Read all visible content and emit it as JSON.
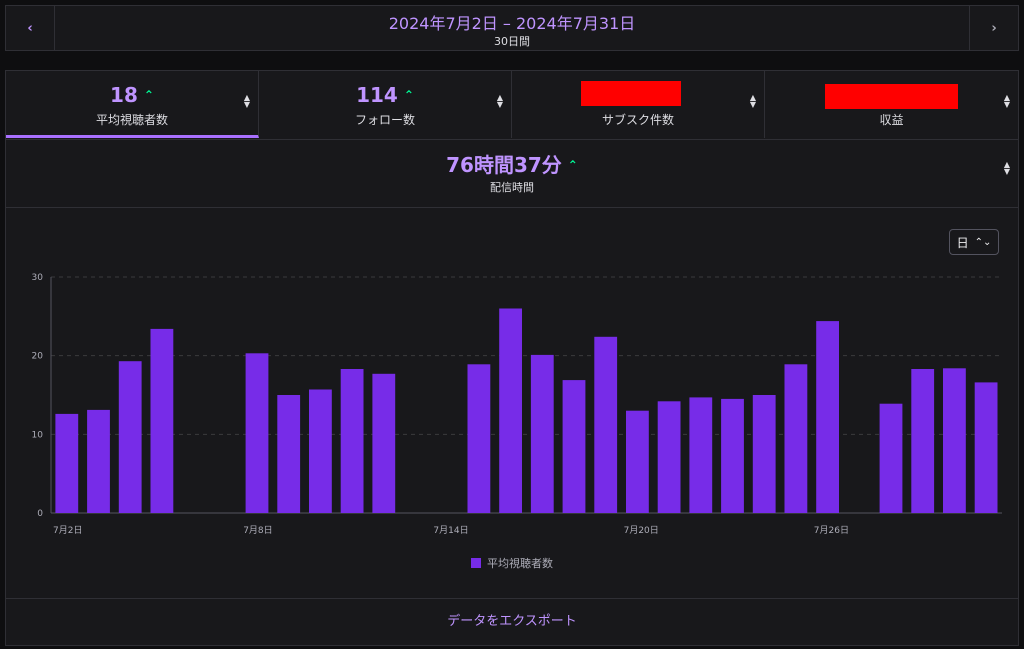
{
  "header": {
    "prev_icon": "chevron-left-icon",
    "next_icon": "chevron-right-icon",
    "date_range": "2024年7月2日 – 2024年7月31日",
    "duration": "30日間"
  },
  "metrics": {
    "tabs": [
      {
        "value": "18",
        "label": "平均視聴者数",
        "trend": "up"
      },
      {
        "value": "114",
        "label": "フォロー数",
        "trend": "up"
      },
      {
        "value": "",
        "label": "サブスク件数",
        "redacted": true
      },
      {
        "value": "",
        "label": "収益",
        "redacted": true
      }
    ],
    "hours": {
      "value": "76時間37分",
      "label": "配信時間",
      "trend": "up"
    }
  },
  "interval": {
    "label": "日"
  },
  "chart_data": {
    "type": "bar",
    "series": [
      {
        "name": "平均視聴者数",
        "color": "#772ce8",
        "values": [
          12.6,
          13.1,
          19.3,
          23.4,
          null,
          null,
          20.3,
          15.0,
          15.7,
          18.3,
          17.7,
          null,
          null,
          18.9,
          26.0,
          20.1,
          16.9,
          22.4,
          13.0,
          14.2,
          14.7,
          14.5,
          15.0,
          18.9,
          24.4,
          null,
          13.9,
          18.3,
          18.4,
          16.6
        ]
      }
    ],
    "x_tick_labels": [
      "7月2日",
      "7月8日",
      "7月14日",
      "7月20日",
      "7月26日"
    ],
    "y_ticks": [
      0,
      10,
      20,
      30
    ],
    "ylim": [
      0,
      30
    ],
    "grid": true,
    "legend_position": "bottom"
  },
  "export": {
    "label": "データをエクスポート"
  },
  "colors": {
    "accent": "#bf94ff",
    "bar": "#772ce8",
    "trend_up": "#00f593",
    "background": "#18181b"
  }
}
